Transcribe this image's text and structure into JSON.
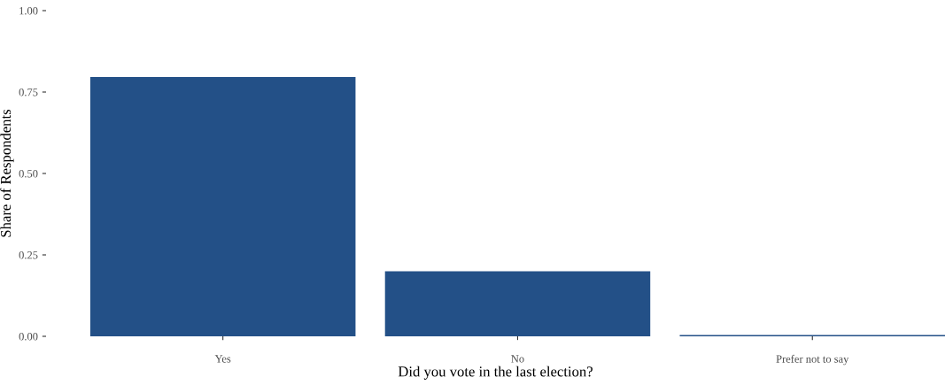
{
  "chart_data": {
    "type": "bar",
    "xlabel": "Did you vote in the last election?",
    "ylabel": "Share of Respondents",
    "categories": [
      "Yes",
      "No",
      "Prefer not to say"
    ],
    "values": [
      0.796,
      0.2,
      0.004
    ],
    "color": "#235087",
    "ylim": [
      0,
      1
    ],
    "yticks": [
      {
        "value": 0,
        "label": "0.00"
      },
      {
        "value": 0.25,
        "label": "0.25"
      },
      {
        "value": 0.5,
        "label": "0.50"
      },
      {
        "value": 0.75,
        "label": "0.75"
      },
      {
        "value": 1,
        "label": "1.00"
      }
    ],
    "grid": false
  }
}
